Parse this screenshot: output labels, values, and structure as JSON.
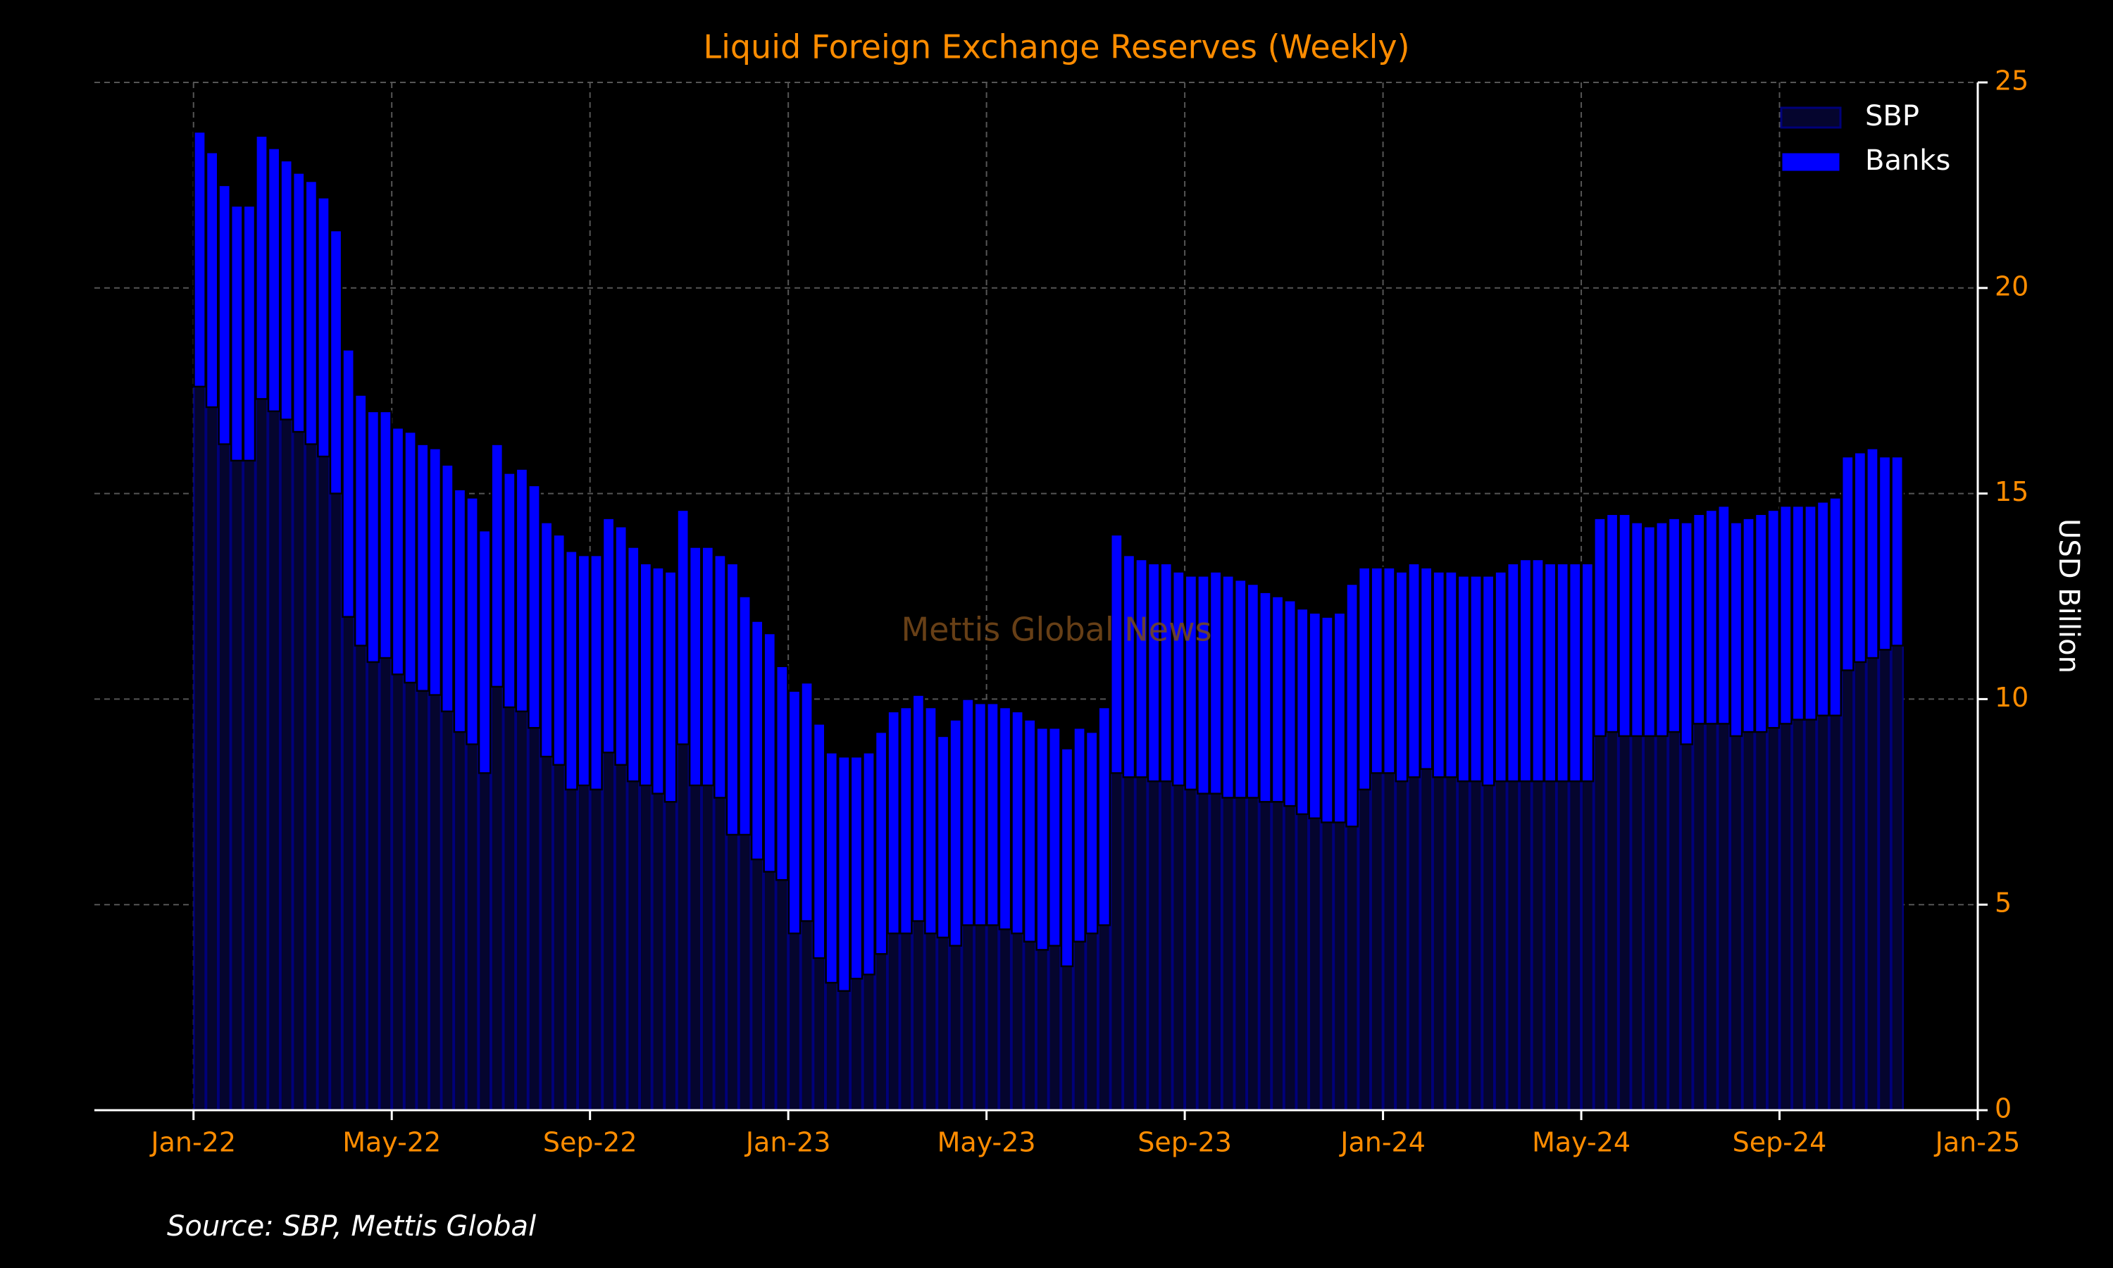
{
  "chart_data": {
    "type": "stacked_bar",
    "title": "Liquid Foreign Exchange Reserves (Weekly)",
    "ylabel": "USD Billion",
    "source": "Source: SBP, Mettis Global",
    "watermark": "Mettis Global News",
    "x": [
      "2022-01",
      "2022-01",
      "2022-01",
      "2022-01",
      "2022-02",
      "2022-02",
      "2022-02",
      "2022-02",
      "2022-03",
      "2022-03",
      "2022-03",
      "2022-03",
      "2022-04",
      "2022-04",
      "2022-04",
      "2022-04",
      "2022-05",
      "2022-05",
      "2022-05",
      "2022-05",
      "2022-06",
      "2022-06",
      "2022-06",
      "2022-06",
      "2022-07",
      "2022-07",
      "2022-07",
      "2022-07",
      "2022-08",
      "2022-08",
      "2022-08",
      "2022-08",
      "2022-09",
      "2022-09",
      "2022-09",
      "2022-09",
      "2022-10",
      "2022-10",
      "2022-10",
      "2022-10",
      "2022-11",
      "2022-11",
      "2022-11",
      "2022-11",
      "2022-12",
      "2022-12",
      "2022-12",
      "2022-12",
      "2023-01",
      "2023-01",
      "2023-01",
      "2023-01",
      "2023-02",
      "2023-02",
      "2023-02",
      "2023-02",
      "2023-03",
      "2023-03",
      "2023-03",
      "2023-03",
      "2023-04",
      "2023-04",
      "2023-04",
      "2023-04",
      "2023-05",
      "2023-05",
      "2023-05",
      "2023-05",
      "2023-06",
      "2023-06",
      "2023-06",
      "2023-06",
      "2023-07",
      "2023-07",
      "2023-07",
      "2023-07",
      "2023-08",
      "2023-08",
      "2023-08",
      "2023-08",
      "2023-09",
      "2023-09",
      "2023-09",
      "2023-09",
      "2023-10",
      "2023-10",
      "2023-10",
      "2023-10",
      "2023-11",
      "2023-11",
      "2023-11",
      "2023-11",
      "2023-12",
      "2023-12",
      "2023-12",
      "2023-12",
      "2024-01",
      "2024-01",
      "2024-01",
      "2024-01",
      "2024-02",
      "2024-02",
      "2024-02",
      "2024-02",
      "2024-03",
      "2024-03",
      "2024-03",
      "2024-03",
      "2024-04",
      "2024-04",
      "2024-04",
      "2024-04",
      "2024-05",
      "2024-05",
      "2024-05",
      "2024-05",
      "2024-06",
      "2024-06",
      "2024-06",
      "2024-06",
      "2024-07",
      "2024-07",
      "2024-07",
      "2024-07",
      "2024-08",
      "2024-08",
      "2024-08",
      "2024-08",
      "2024-09",
      "2024-09",
      "2024-09",
      "2024-09",
      "2024-10",
      "2024-10",
      "2024-10",
      "2024-10",
      "2024-11",
      "2024-11"
    ],
    "series": [
      {
        "name": "SBP",
        "color": "#05052e",
        "edgecolor": "#00007a",
        "values": [
          17.6,
          17.1,
          16.2,
          15.8,
          15.8,
          17.3,
          17.0,
          16.8,
          16.5,
          16.2,
          15.9,
          15.0,
          12.0,
          11.3,
          10.9,
          11.0,
          10.6,
          10.4,
          10.2,
          10.1,
          9.7,
          9.2,
          8.9,
          8.2,
          10.3,
          9.8,
          9.7,
          9.3,
          8.6,
          8.4,
          7.8,
          7.9,
          7.8,
          8.7,
          8.4,
          8.0,
          7.9,
          7.7,
          7.5,
          8.9,
          7.9,
          7.9,
          7.6,
          6.7,
          6.7,
          6.1,
          5.8,
          5.6,
          4.3,
          4.6,
          3.7,
          3.1,
          2.9,
          3.2,
          3.3,
          3.8,
          4.3,
          4.3,
          4.6,
          4.3,
          4.2,
          4.0,
          4.5,
          4.5,
          4.5,
          4.4,
          4.3,
          4.1,
          3.9,
          4.0,
          3.5,
          4.1,
          4.3,
          4.5,
          8.2,
          8.1,
          8.1,
          8.0,
          8.0,
          7.9,
          7.8,
          7.7,
          7.7,
          7.6,
          7.6,
          7.6,
          7.5,
          7.5,
          7.4,
          7.2,
          7.1,
          7.0,
          7.0,
          6.9,
          7.8,
          8.2,
          8.2,
          8.0,
          8.1,
          8.3,
          8.1,
          8.1,
          8.0,
          8.0,
          7.9,
          8.0,
          8.0,
          8.0,
          8.0,
          8.0,
          8.0,
          8.0,
          8.0,
          9.1,
          9.2,
          9.1,
          9.1,
          9.1,
          9.1,
          9.2,
          8.9,
          9.4,
          9.4,
          9.4,
          9.1,
          9.2,
          9.2,
          9.3,
          9.4,
          9.5,
          9.5,
          9.6,
          9.6,
          10.7,
          10.9,
          11.0,
          11.2,
          11.3
        ]
      },
      {
        "name": "Banks",
        "color": "#0000ff",
        "edgecolor": "#000000",
        "values": [
          6.2,
          6.2,
          6.3,
          6.2,
          6.2,
          6.4,
          6.4,
          6.3,
          6.3,
          6.4,
          6.3,
          6.4,
          6.5,
          6.1,
          6.1,
          6.0,
          6.0,
          6.1,
          6.0,
          6.0,
          6.0,
          5.9,
          6.0,
          5.9,
          5.9,
          5.7,
          5.9,
          5.9,
          5.7,
          5.6,
          5.8,
          5.6,
          5.7,
          5.7,
          5.8,
          5.7,
          5.4,
          5.5,
          5.6,
          5.7,
          5.8,
          5.8,
          5.9,
          6.6,
          5.8,
          5.8,
          5.8,
          5.2,
          5.9,
          5.8,
          5.7,
          5.6,
          5.7,
          5.4,
          5.4,
          5.4,
          5.4,
          5.5,
          5.5,
          5.5,
          4.9,
          5.5,
          5.5,
          5.4,
          5.4,
          5.4,
          5.4,
          5.4,
          5.4,
          5.3,
          5.3,
          5.2,
          4.9,
          5.3,
          5.8,
          5.4,
          5.3,
          5.3,
          5.3,
          5.2,
          5.2,
          5.3,
          5.4,
          5.4,
          5.3,
          5.2,
          5.1,
          5.0,
          5.0,
          5.0,
          5.0,
          5.0,
          5.1,
          5.9,
          5.4,
          5.0,
          5.0,
          5.1,
          5.2,
          4.9,
          5.0,
          5.0,
          5.0,
          5.0,
          5.1,
          5.1,
          5.3,
          5.4,
          5.4,
          5.3,
          5.3,
          5.3,
          5.3,
          5.3,
          5.3,
          5.4,
          5.2,
          5.1,
          5.2,
          5.2,
          5.4,
          5.1,
          5.2,
          5.3,
          5.2,
          5.2,
          5.3,
          5.3,
          5.3,
          5.2,
          5.2,
          5.2,
          5.3,
          5.2,
          5.1,
          5.1,
          4.7,
          4.6
        ]
      }
    ],
    "xlim": [
      "2021-11",
      "2025-01"
    ],
    "xticks": [
      {
        "value": "2022-01",
        "label": "Jan-22"
      },
      {
        "value": "2022-05",
        "label": "May-22"
      },
      {
        "value": "2022-09",
        "label": "Sep-22"
      },
      {
        "value": "2023-01",
        "label": "Jan-23"
      },
      {
        "value": "2023-05",
        "label": "May-23"
      },
      {
        "value": "2023-09",
        "label": "Sep-23"
      },
      {
        "value": "2024-01",
        "label": "Jan-24"
      },
      {
        "value": "2024-05",
        "label": "May-24"
      },
      {
        "value": "2024-09",
        "label": "Sep-24"
      },
      {
        "value": "2025-01",
        "label": "Jan-25"
      }
    ],
    "ylim": [
      0,
      25
    ],
    "yticks": [
      0,
      5,
      10,
      15,
      20,
      25
    ],
    "yaxis_position": "right",
    "grid": true,
    "legend": "upper right"
  }
}
